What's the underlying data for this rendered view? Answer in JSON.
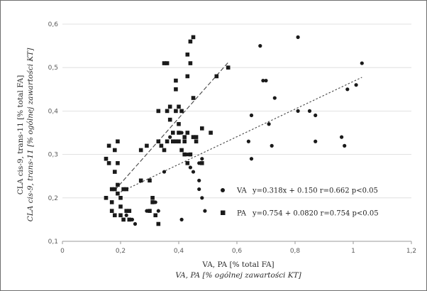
{
  "chart_data": {
    "type": "scatter",
    "xlabel": "VA, PA [% total FA]",
    "xlabel_italic": "VA, PA [% ogólnej zawartości KT]",
    "ylabel": "CLA cis-9, trans-11 [% total FA]",
    "ylabel_italic": "CLA cis-9, trans-11 [% ogólnej zawartości KT]",
    "xlim": [
      0,
      1.2
    ],
    "ylim": [
      0.1,
      0.6
    ],
    "x_ticks": [
      "0",
      "0,2",
      "0,4",
      "0,6",
      "0,8",
      "1",
      "1,2"
    ],
    "x_tick_values": [
      0,
      0.2,
      0.4,
      0.6,
      0.8,
      1.0,
      1.2
    ],
    "y_ticks": [
      "0,1",
      "0,2",
      "0,3",
      "0,4",
      "0,5",
      "0,6"
    ],
    "y_tick_values": [
      0.1,
      0.2,
      0.3,
      0.4,
      0.5,
      0.6
    ],
    "grid": "horizontal",
    "legend_position": "bottom-right",
    "series": [
      {
        "name": "VA",
        "marker": "circle",
        "color": "#1a1a1a",
        "legend_text": "y=0.318x + 0.150  r=0.662 p<0.05",
        "fit": {
          "slope": 0.318,
          "intercept": 0.15,
          "x_range": [
            0.2,
            1.03
          ]
        },
        "points": [
          [
            0.21,
            0.15
          ],
          [
            0.22,
            0.16
          ],
          [
            0.24,
            0.15
          ],
          [
            0.25,
            0.14
          ],
          [
            0.29,
            0.17
          ],
          [
            0.32,
            0.19
          ],
          [
            0.33,
            0.17
          ],
          [
            0.35,
            0.26
          ],
          [
            0.41,
            0.15
          ],
          [
            0.43,
            0.3
          ],
          [
            0.44,
            0.27
          ],
          [
            0.45,
            0.26
          ],
          [
            0.47,
            0.24
          ],
          [
            0.47,
            0.22
          ],
          [
            0.48,
            0.2
          ],
          [
            0.47,
            0.28
          ],
          [
            0.48,
            0.29
          ],
          [
            0.49,
            0.17
          ],
          [
            0.37,
            0.34
          ],
          [
            0.41,
            0.35
          ],
          [
            0.64,
            0.33
          ],
          [
            0.65,
            0.29
          ],
          [
            0.65,
            0.39
          ],
          [
            0.68,
            0.55
          ],
          [
            0.69,
            0.47
          ],
          [
            0.7,
            0.47
          ],
          [
            0.71,
            0.37
          ],
          [
            0.72,
            0.32
          ],
          [
            0.73,
            0.43
          ],
          [
            0.81,
            0.57
          ],
          [
            0.81,
            0.4
          ],
          [
            0.87,
            0.39
          ],
          [
            0.87,
            0.33
          ],
          [
            0.96,
            0.34
          ],
          [
            0.97,
            0.32
          ],
          [
            0.98,
            0.45
          ],
          [
            1.01,
            0.46
          ],
          [
            1.03,
            0.51
          ],
          [
            0.85,
            0.4
          ]
        ]
      },
      {
        "name": "PA",
        "marker": "square",
        "color": "#1a1a1a",
        "legend_text": "y=0.754 + 0.0820  r=0.754 p<0.05",
        "fit": {
          "slope": 0.754,
          "intercept": 0.082,
          "x_range": [
            0.18,
            0.57
          ]
        },
        "points": [
          [
            0.15,
            0.2
          ],
          [
            0.15,
            0.29
          ],
          [
            0.16,
            0.32
          ],
          [
            0.16,
            0.28
          ],
          [
            0.17,
            0.22
          ],
          [
            0.17,
            0.19
          ],
          [
            0.17,
            0.17
          ],
          [
            0.18,
            0.31
          ],
          [
            0.18,
            0.26
          ],
          [
            0.18,
            0.22
          ],
          [
            0.18,
            0.16
          ],
          [
            0.19,
            0.33
          ],
          [
            0.19,
            0.28
          ],
          [
            0.19,
            0.21
          ],
          [
            0.2,
            0.2
          ],
          [
            0.2,
            0.18
          ],
          [
            0.2,
            0.16
          ],
          [
            0.21,
            0.22
          ],
          [
            0.22,
            0.22
          ],
          [
            0.22,
            0.17
          ],
          [
            0.23,
            0.15
          ],
          [
            0.23,
            0.17
          ],
          [
            0.27,
            0.24
          ],
          [
            0.27,
            0.31
          ],
          [
            0.29,
            0.32
          ],
          [
            0.3,
            0.24
          ],
          [
            0.3,
            0.17
          ],
          [
            0.31,
            0.19
          ],
          [
            0.31,
            0.2
          ],
          [
            0.32,
            0.16
          ],
          [
            0.33,
            0.14
          ],
          [
            0.33,
            0.4
          ],
          [
            0.33,
            0.33
          ],
          [
            0.34,
            0.32
          ],
          [
            0.35,
            0.31
          ],
          [
            0.35,
            0.51
          ],
          [
            0.36,
            0.51
          ],
          [
            0.36,
            0.4
          ],
          [
            0.36,
            0.33
          ],
          [
            0.37,
            0.41
          ],
          [
            0.37,
            0.38
          ],
          [
            0.38,
            0.33
          ],
          [
            0.38,
            0.35
          ],
          [
            0.39,
            0.47
          ],
          [
            0.39,
            0.45
          ],
          [
            0.39,
            0.33
          ],
          [
            0.39,
            0.4
          ],
          [
            0.4,
            0.41
          ],
          [
            0.4,
            0.37
          ],
          [
            0.4,
            0.35
          ],
          [
            0.4,
            0.33
          ],
          [
            0.41,
            0.4
          ],
          [
            0.41,
            0.31
          ],
          [
            0.42,
            0.3
          ],
          [
            0.42,
            0.34
          ],
          [
            0.42,
            0.33
          ],
          [
            0.43,
            0.53
          ],
          [
            0.43,
            0.48
          ],
          [
            0.43,
            0.35
          ],
          [
            0.43,
            0.28
          ],
          [
            0.44,
            0.56
          ],
          [
            0.44,
            0.51
          ],
          [
            0.44,
            0.3
          ],
          [
            0.45,
            0.57
          ],
          [
            0.45,
            0.43
          ],
          [
            0.45,
            0.34
          ],
          [
            0.46,
            0.34
          ],
          [
            0.46,
            0.33
          ],
          [
            0.48,
            0.28
          ],
          [
            0.48,
            0.36
          ],
          [
            0.51,
            0.35
          ],
          [
            0.53,
            0.48
          ],
          [
            0.57,
            0.5
          ],
          [
            0.21,
            0.15
          ],
          [
            0.19,
            0.23
          ]
        ]
      }
    ]
  }
}
